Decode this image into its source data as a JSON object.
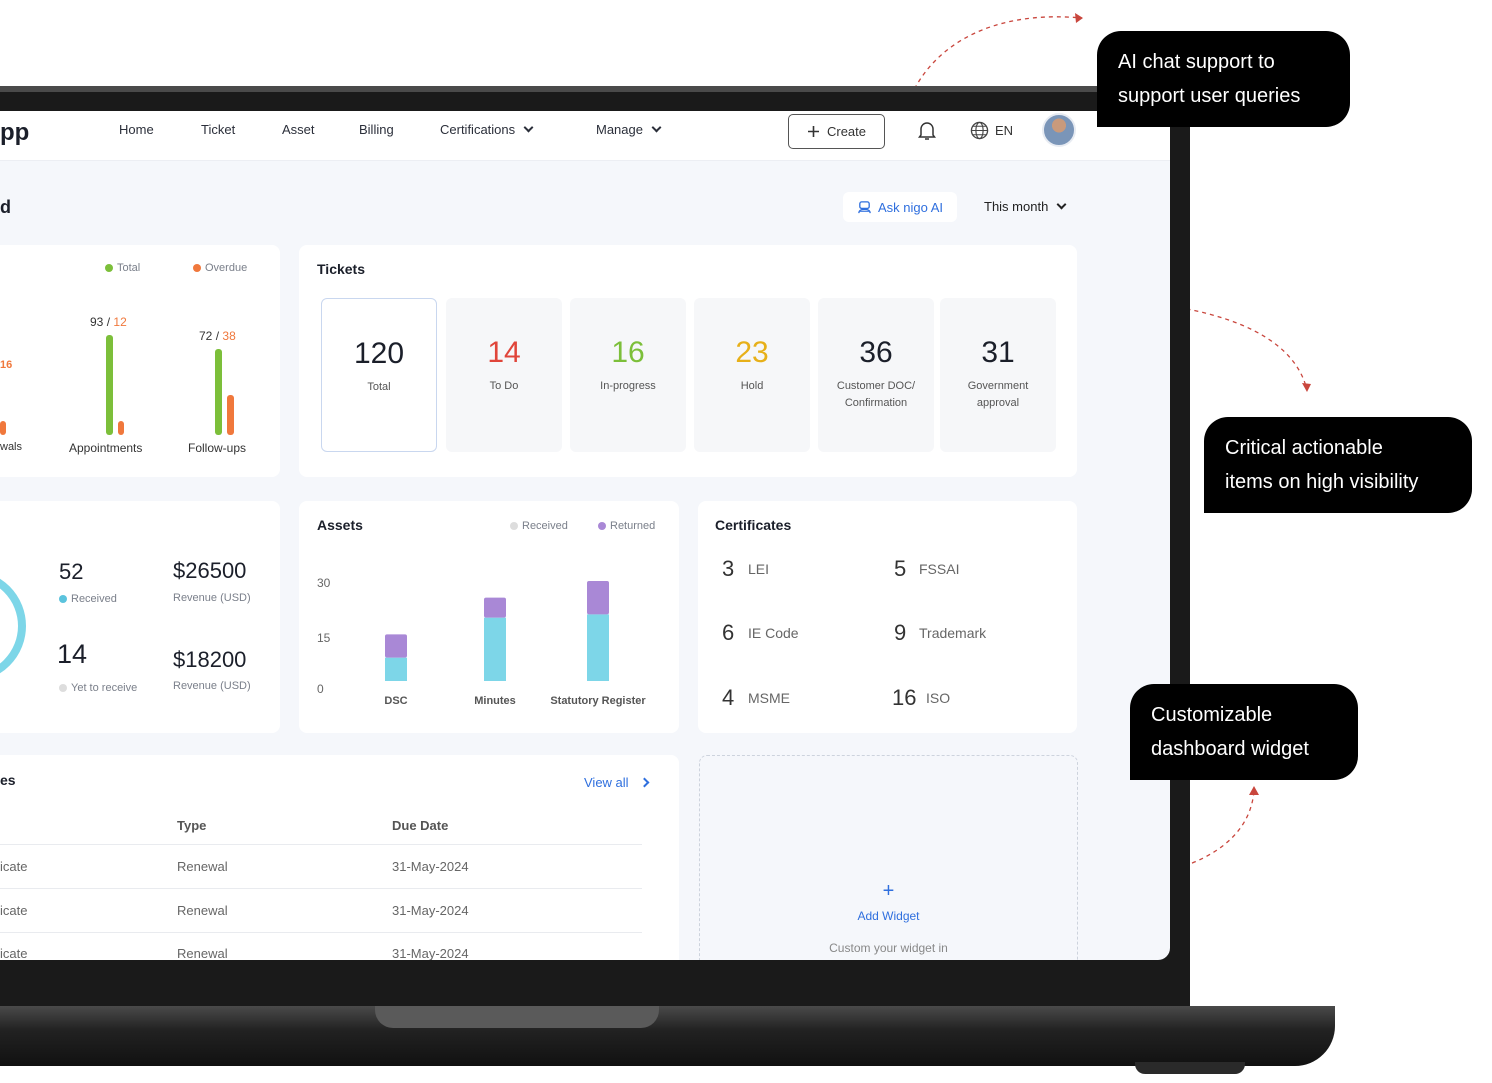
{
  "callouts": {
    "ai_chat": {
      "line1": "AI chat support to",
      "line2": "support user queries"
    },
    "critical": {
      "line1": "Critical actionable",
      "line2": "items on high visibility"
    },
    "widget": {
      "line1": "Customizable",
      "line2": "dashboard widget"
    }
  },
  "nav": {
    "logo": "pp",
    "items": [
      "Home",
      "Ticket",
      "Asset",
      "Billing",
      "Certifications",
      "Manage"
    ],
    "create_label": "Create",
    "lang": "EN"
  },
  "header": {
    "title": "d",
    "ask_ai": "Ask nigo AI",
    "period": "This month"
  },
  "overview": {
    "legend_total": "Total",
    "legend_overdue": "Overdue",
    "partial_value": "16",
    "partial_label": "wals",
    "appointments": {
      "total": "93",
      "overdue": "12",
      "label": "Appointments"
    },
    "followups": {
      "total": "72",
      "overdue": "38",
      "label": "Follow-ups"
    },
    "sep": "/"
  },
  "tickets": {
    "title": "Tickets",
    "items": [
      {
        "value": "120",
        "label": "Total",
        "color": "#1b1f2a"
      },
      {
        "value": "14",
        "label": "To Do",
        "color": "#e0453a"
      },
      {
        "value": "16",
        "label": "In-progress",
        "color": "#7cbf3a"
      },
      {
        "value": "23",
        "label": "Hold",
        "color": "#e7b019"
      },
      {
        "value": "36",
        "label": "Customer DOC/ Confirmation",
        "color": "#1b1f2a"
      },
      {
        "value": "31",
        "label": "Government approval",
        "color": "#1b1f2a"
      }
    ]
  },
  "billing": {
    "received_count": "52",
    "received_label": "Received",
    "pending_count": "14",
    "pending_label": "Yet to receive",
    "revenue1": "$26500",
    "revenue1_label": "Revenue (USD)",
    "revenue2": "$18200",
    "revenue2_label": "Revenue (USD)"
  },
  "assets": {
    "title": "Assets",
    "legend_received": "Received",
    "legend_returned": "Returned",
    "yticks": [
      "30",
      "15",
      "0"
    ],
    "colors": {
      "received": "#7dd6e8",
      "returned": "#a988d6"
    }
  },
  "chart_data": {
    "type": "bar",
    "categories": [
      "DSC",
      "Minutes",
      "Statutory Register"
    ],
    "series": [
      {
        "name": "Received",
        "values": [
          7,
          19,
          20
        ]
      },
      {
        "name": "Returned",
        "values": [
          7,
          6,
          10
        ]
      }
    ],
    "ylim": [
      0,
      30
    ],
    "stacked": true
  },
  "certificates": {
    "title": "Certificates",
    "items": [
      {
        "count": "3",
        "label": "LEI"
      },
      {
        "count": "5",
        "label": "FSSAI"
      },
      {
        "count": "6",
        "label": "IE Code"
      },
      {
        "count": "9",
        "label": "Trademark"
      },
      {
        "count": "4",
        "label": "MSME"
      },
      {
        "count": "16",
        "label": "ISO"
      }
    ]
  },
  "renewals": {
    "title_partial": "es",
    "view_all": "View all",
    "col_type": "Type",
    "col_due": "Due Date",
    "rows": [
      {
        "name": "icate",
        "type": "Renewal",
        "due": "31-May-2024"
      },
      {
        "name": "icate",
        "type": "Renewal",
        "due": "31-May-2024"
      },
      {
        "name": "icate",
        "type": "Renewal",
        "due": "31-May-2024"
      }
    ]
  },
  "add_widget": {
    "plus": "+",
    "label": "Add Widget",
    "hint": "Custom your widget in"
  }
}
